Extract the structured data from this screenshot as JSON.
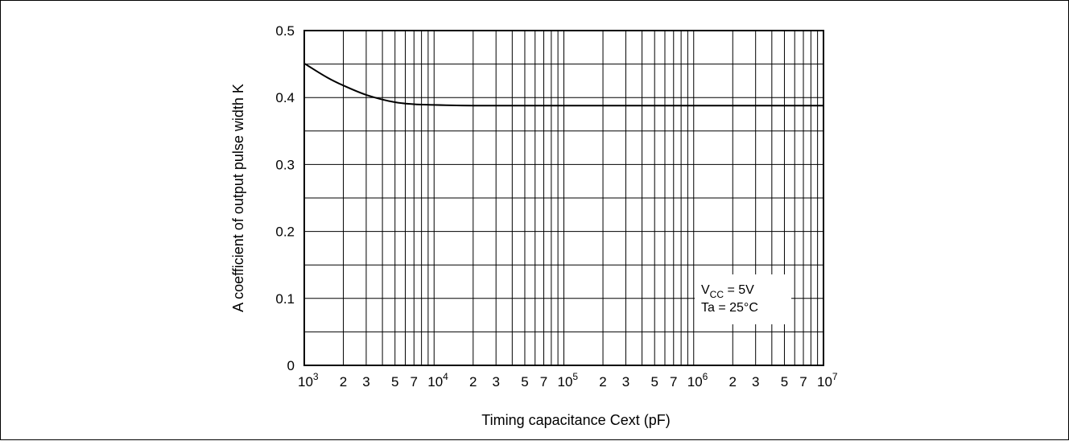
{
  "chart_data": {
    "type": "line",
    "title": "",
    "xlabel": "Timing capacitance  Cext (pF)",
    "ylabel": "A coefficient of output pulse width K",
    "x_scale": "log",
    "xlim": [
      1000,
      10000000
    ],
    "ylim": [
      0,
      0.5
    ],
    "grid": true,
    "y_ticks": [
      {
        "value": 0,
        "label": "0"
      },
      {
        "value": 0.1,
        "label": "0.1"
      },
      {
        "value": 0.2,
        "label": "0.2"
      },
      {
        "value": 0.3,
        "label": "0.3"
      },
      {
        "value": 0.4,
        "label": "0.4"
      },
      {
        "value": 0.5,
        "label": "0.5"
      }
    ],
    "y_minor_ticks": [
      0.05,
      0.15,
      0.25,
      0.35,
      0.45
    ],
    "x_decade_ticks": [
      {
        "value": 1000,
        "base": "10",
        "exp": "3"
      },
      {
        "value": 10000,
        "base": "10",
        "exp": "4"
      },
      {
        "value": 100000,
        "base": "10",
        "exp": "5"
      },
      {
        "value": 1000000,
        "base": "10",
        "exp": "6"
      },
      {
        "value": 10000000,
        "base": "10",
        "exp": "7"
      }
    ],
    "x_minor_multipliers": [
      2,
      3,
      4,
      5,
      6,
      7,
      8,
      9
    ],
    "x_minor_labels": [
      {
        "mult": 2,
        "label": "2"
      },
      {
        "mult": 3,
        "label": "3"
      },
      {
        "mult": 5,
        "label": "5"
      },
      {
        "mult": 7,
        "label": "7"
      }
    ],
    "series": [
      {
        "x": [
          1000,
          1500,
          2000,
          3000,
          5000,
          7000,
          10000,
          20000,
          30000,
          100000,
          1000000,
          10000000
        ],
        "y": [
          0.451,
          0.43,
          0.418,
          0.404,
          0.393,
          0.39,
          0.389,
          0.388,
          0.388,
          0.388,
          0.388,
          0.388
        ]
      }
    ],
    "annotation": {
      "lines": [
        {
          "main": "V",
          "sub": "CC",
          "rest": " = 5V"
        },
        {
          "main": "Ta = 25°C",
          "sub": "",
          "rest": ""
        }
      ]
    }
  }
}
